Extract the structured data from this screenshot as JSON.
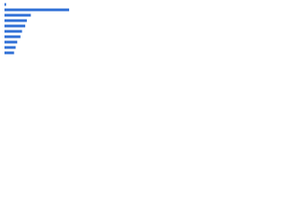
{
  "chart_data": {
    "type": "bar",
    "orientation": "horizontal",
    "categories": [
      null,
      null,
      null,
      null,
      null,
      null,
      null,
      null,
      null,
      null
    ],
    "values": [
      2,
      81,
      33,
      28,
      26,
      22,
      20,
      16,
      14,
      12
    ],
    "color": "#2f6fd6",
    "xlim": [
      0,
      100
    ]
  }
}
